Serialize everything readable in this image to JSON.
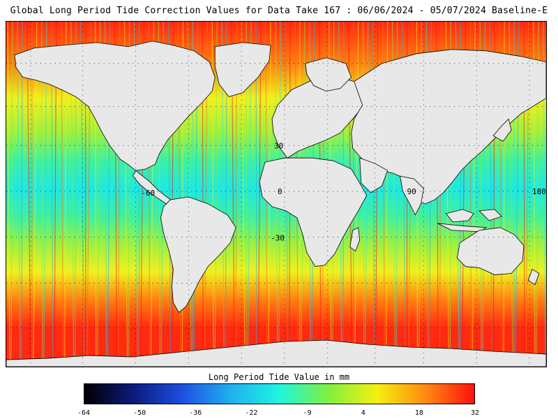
{
  "title": "Global Long Period Tide Correction Values for Data Take 167 : 06/06/2024 - 05/07/2024 Baseline-E",
  "map": {
    "graticule_labels": {
      "lat_30": "30",
      "lat_0": "0",
      "lat_m30": "-30",
      "lon_m60": "-60",
      "lon_90": "90",
      "lon_180": "180"
    },
    "colors": {
      "land": "#e8e8e8",
      "coast": "#000000"
    }
  },
  "legend": {
    "title": "Long Period Tide Value in mm",
    "ticks": [
      "-64",
      "-50",
      "-36",
      "-22",
      "-9",
      "4",
      "18",
      "32"
    ],
    "colors": [
      "#000000",
      "#0b1a7a",
      "#1d4fe0",
      "#1fb0f0",
      "#1ff5e0",
      "#7ff040",
      "#f5f010",
      "#ff8a10",
      "#ff1010"
    ]
  }
}
